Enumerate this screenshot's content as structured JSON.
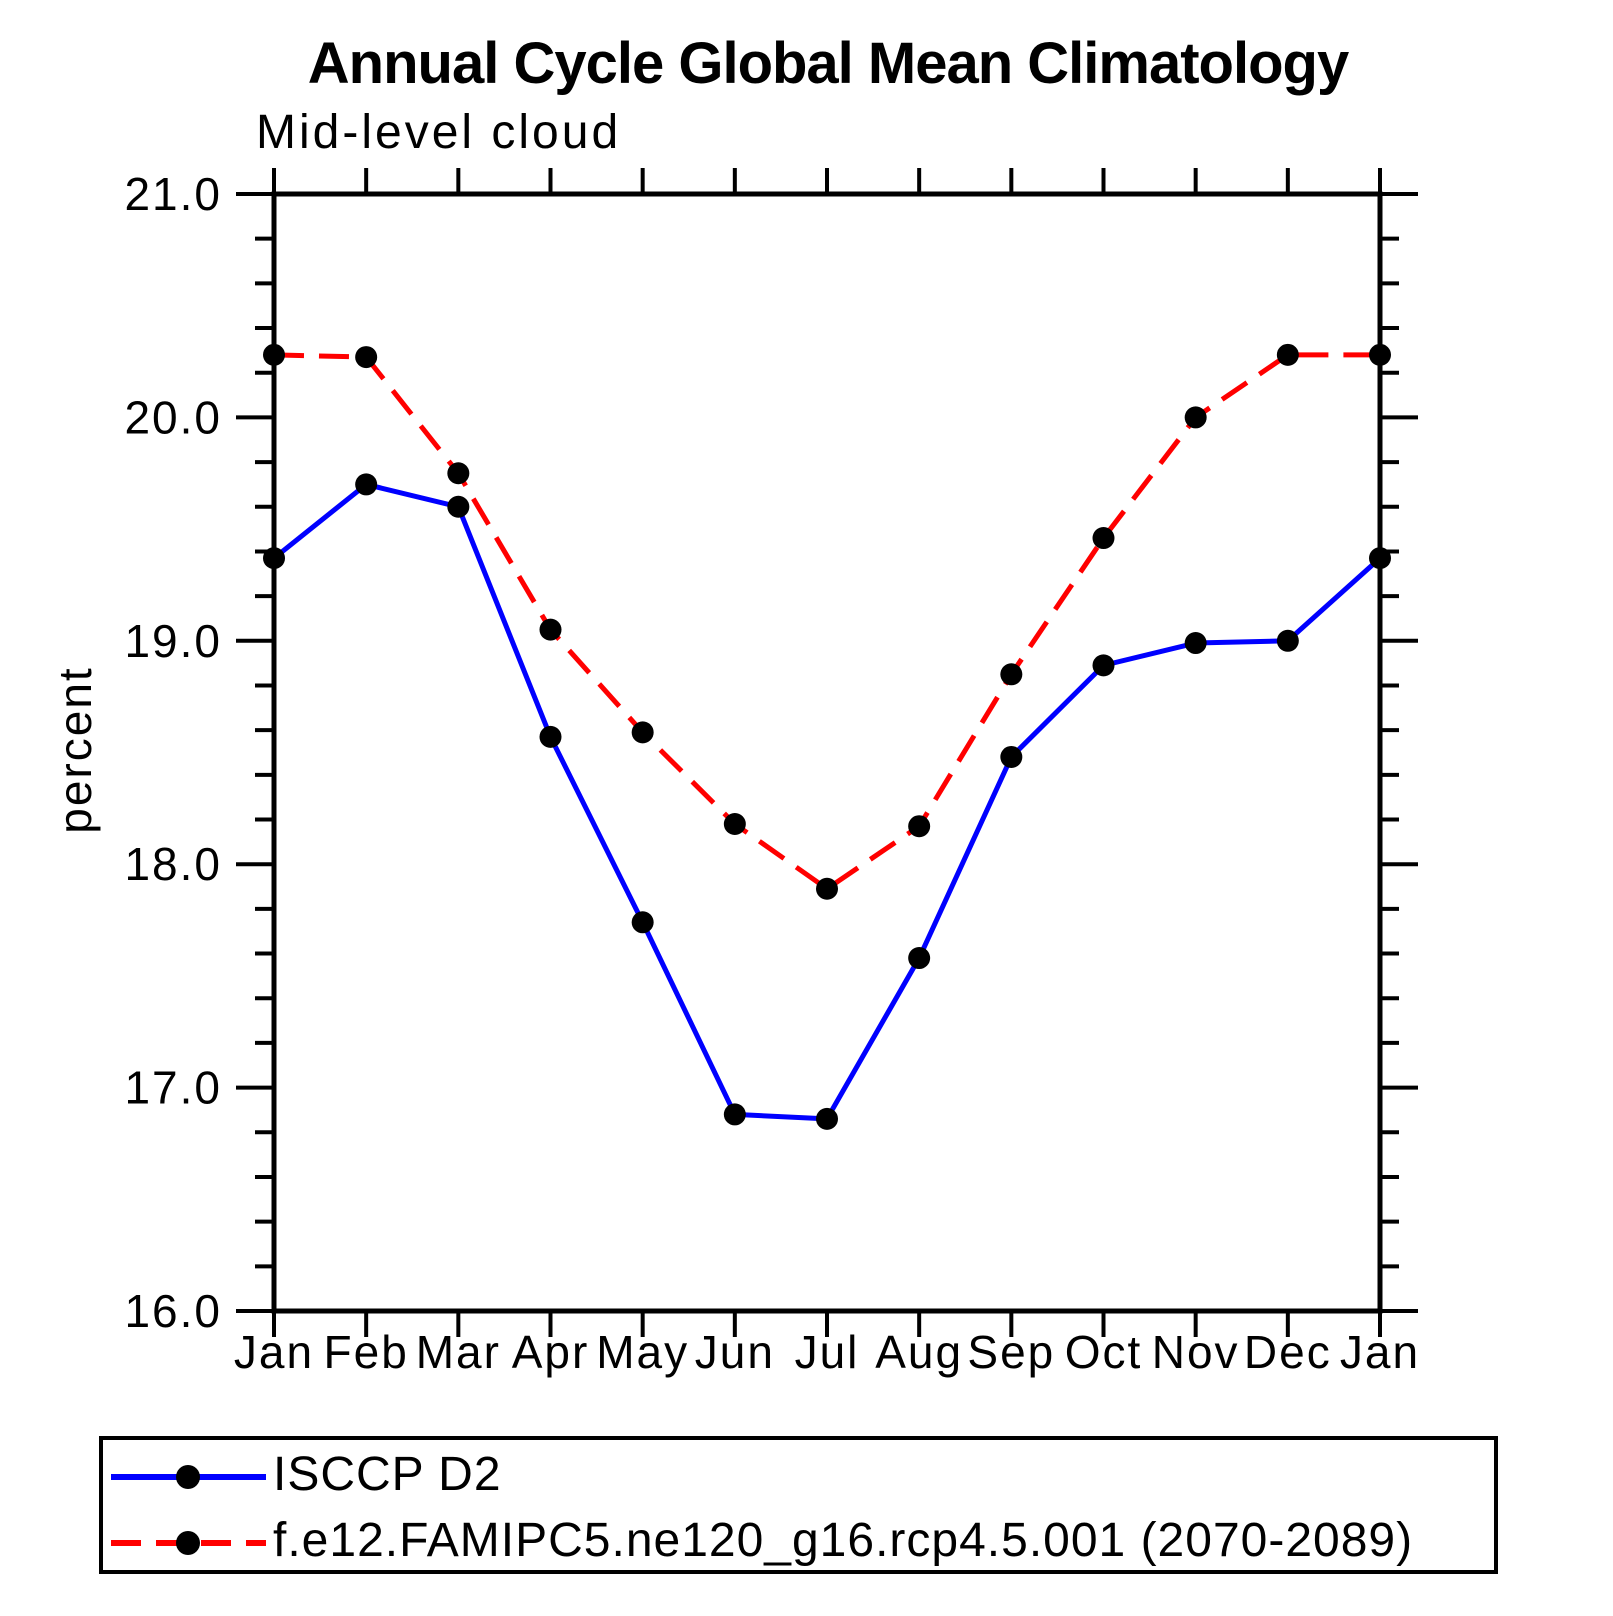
{
  "figure": {
    "title": "Annual Cycle Global Mean Climatology",
    "subtitle": "Mid-level cloud"
  },
  "chart_data": {
    "type": "line",
    "title": "Annual Cycle Global Mean Climatology",
    "subtitle": "Mid-level cloud",
    "xlabel": "",
    "ylabel": "percent",
    "ylim": [
      16.0,
      21.0
    ],
    "ytick_major_step": 1.0,
    "ytick_minor_step": 0.2,
    "ytick_labels": [
      "21.0",
      "20.0",
      "19.0",
      "18.0",
      "17.0",
      "16.0"
    ],
    "categories": [
      "Jan",
      "Feb",
      "Mar",
      "Apr",
      "May",
      "Jun",
      "Jul",
      "Aug",
      "Sep",
      "Oct",
      "Nov",
      "Dec",
      "Jan"
    ],
    "grid": false,
    "legend_position": "bottom",
    "series": [
      {
        "name": "ISCCP D2",
        "color": "#0000ff",
        "line_style": "solid",
        "marker": "filled-circle",
        "marker_color": "#000000",
        "values": [
          19.37,
          19.7,
          19.6,
          18.57,
          17.74,
          16.88,
          16.86,
          17.58,
          18.48,
          18.89,
          18.99,
          19.0,
          19.37
        ]
      },
      {
        "name": "f.e12.FAMIPC5.ne120_g16.rcp4.5.001 (2070-2089)",
        "color": "#ff0000",
        "line_style": "dashed",
        "marker": "filled-circle",
        "marker_color": "#000000",
        "values": [
          20.28,
          20.27,
          19.75,
          19.05,
          18.59,
          18.18,
          17.89,
          18.17,
          18.85,
          19.46,
          20.0,
          20.28,
          20.28
        ]
      }
    ]
  },
  "colors": {
    "background": "#ffffff",
    "axis": "#000000",
    "obs_line": "#0000ff",
    "model_line": "#ff0000",
    "marker": "#000000"
  }
}
